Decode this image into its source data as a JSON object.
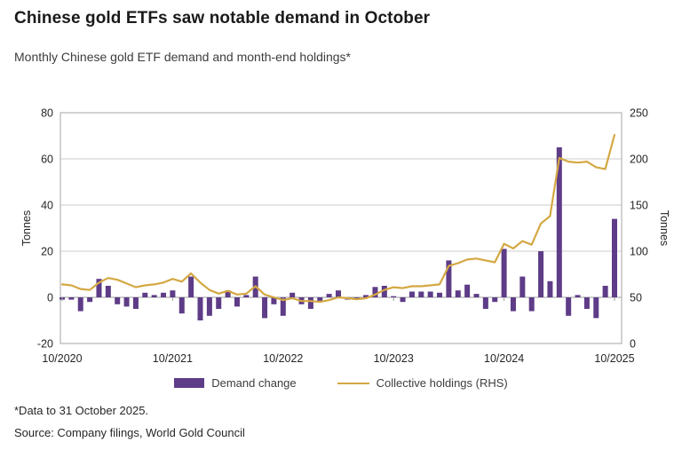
{
  "header": {
    "title": "Chinese gold ETFs saw notable demand in October",
    "subtitle": "Monthly Chinese gold ETF demand and month-end holdings*"
  },
  "colors": {
    "bar": "#5e3c87",
    "line": "#d4a843",
    "grid": "#cccccc",
    "axis_line": "#9e9e9e",
    "border": "#b3b3b3",
    "axis_text": "#262626"
  },
  "chart_data": {
    "type": "bar",
    "note": "combo chart: monthly bars (demand change, left axis) + line (collective holdings, right axis)",
    "months": [
      "2020-10",
      "2020-11",
      "2020-12",
      "2021-01",
      "2021-02",
      "2021-03",
      "2021-04",
      "2021-05",
      "2021-06",
      "2021-07",
      "2021-08",
      "2021-09",
      "2021-10",
      "2021-11",
      "2021-12",
      "2022-01",
      "2022-02",
      "2022-03",
      "2022-04",
      "2022-05",
      "2022-06",
      "2022-07",
      "2022-08",
      "2022-09",
      "2022-10",
      "2022-11",
      "2022-12",
      "2023-01",
      "2023-02",
      "2023-03",
      "2023-04",
      "2023-05",
      "2023-06",
      "2023-07",
      "2023-08",
      "2023-09",
      "2023-10",
      "2023-11",
      "2023-12",
      "2024-01",
      "2024-02",
      "2024-03",
      "2024-04",
      "2024-05",
      "2024-06",
      "2024-07",
      "2024-08",
      "2024-09",
      "2024-10",
      "2024-11",
      "2024-12",
      "2025-01",
      "2025-02",
      "2025-03",
      "2025-04",
      "2025-05",
      "2025-06",
      "2025-07",
      "2025-08",
      "2025-09",
      "2025-10"
    ],
    "series": [
      {
        "name": "Demand change",
        "type": "bar",
        "axis": "left",
        "values": [
          -1,
          -1,
          -6,
          -2,
          8,
          5,
          -3,
          -4,
          -5,
          2,
          1,
          2,
          3,
          -7,
          9,
          -10,
          -8,
          -5,
          3,
          -4,
          1,
          9,
          -9,
          -3,
          -8,
          2,
          -3,
          -5,
          -1.5,
          1.5,
          3,
          -1,
          -1,
          1,
          4.5,
          5,
          0.5,
          -2,
          2.5,
          2.5,
          2.5,
          2,
          16,
          3,
          5.5,
          1.5,
          -5,
          -2,
          21,
          -6,
          9,
          -6,
          20,
          7,
          65,
          -8,
          1,
          -5,
          -9,
          5,
          34
        ]
      },
      {
        "name": "Collective holdings (RHS)",
        "type": "line",
        "axis": "right",
        "values": [
          64,
          63,
          59,
          58,
          66,
          71,
          69,
          65,
          61,
          63,
          64,
          66,
          70,
          67,
          76,
          66,
          58,
          54,
          57,
          53,
          54,
          62,
          53,
          50,
          47,
          49,
          46,
          46,
          45,
          47,
          50,
          49,
          48,
          49,
          53,
          58,
          61,
          60,
          62,
          62,
          63,
          64,
          84,
          87,
          91,
          92,
          90,
          88,
          108,
          103,
          111,
          107,
          130,
          138,
          201,
          197,
          196,
          197,
          191,
          189,
          226
        ]
      }
    ],
    "left_axis": {
      "label": "Tonnes",
      "ticks": [
        80,
        60,
        40,
        20,
        0,
        -20
      ],
      "range": [
        -20,
        80
      ]
    },
    "right_axis": {
      "label": "Tonnes",
      "ticks": [
        250,
        200,
        150,
        100,
        50,
        0
      ],
      "range": [
        0,
        250
      ]
    },
    "x_ticks": [
      "10/2020",
      "10/2021",
      "10/2022",
      "10/2023",
      "10/2024",
      "10/2025"
    ],
    "grid": true,
    "legend_position": "bottom"
  },
  "legend": {
    "items": [
      {
        "label": "Demand change",
        "swatch": "bar"
      },
      {
        "label": "Collective holdings (RHS)",
        "swatch": "line"
      }
    ]
  },
  "footer": {
    "note": "*Data to 31 October 2025.",
    "source": "Source: Company filings, World Gold Council"
  }
}
